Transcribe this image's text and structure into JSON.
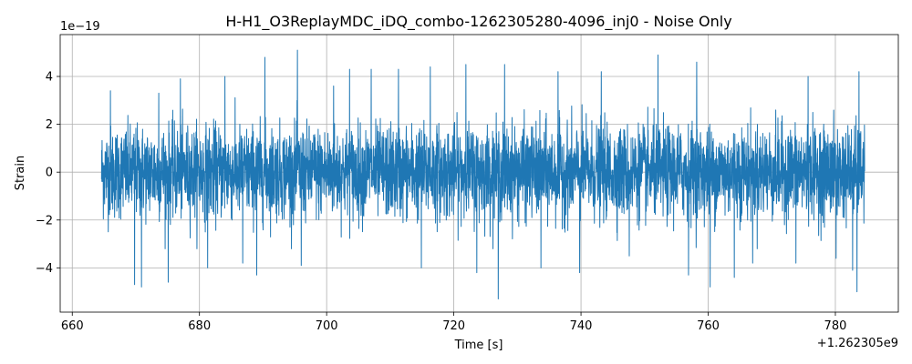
{
  "chart_data": {
    "type": "line",
    "title": "H-H1_O3ReplayMDC_iDQ_combo-1262305280-4096_inj0 - Noise Only",
    "xlabel": "Time [s]",
    "ylabel": "Strain",
    "x_offset_label": "+1.262305e9",
    "y_scale_label": "1e−19",
    "xlim": [
      658.1,
      789.9
    ],
    "ylim": [
      -5.85,
      5.75
    ],
    "x_ticks": [
      660,
      680,
      700,
      720,
      740,
      760,
      780
    ],
    "x_tick_labels": [
      "660",
      "680",
      "700",
      "720",
      "740",
      "760",
      "780"
    ],
    "y_ticks": [
      -4,
      -2,
      0,
      2,
      4
    ],
    "y_tick_labels": [
      "−4",
      "−2",
      "0",
      "2",
      "4"
    ],
    "grid": true,
    "color": "#1f77b4",
    "series": [
      {
        "x_start": 664.6,
        "x_end": 784.6,
        "amplitude_scale": 1.0,
        "peaks": [
          {
            "x": 666.0,
            "y": 3.4
          },
          {
            "x": 669.8,
            "y": -4.7
          },
          {
            "x": 670.9,
            "y": -4.8
          },
          {
            "x": 673.6,
            "y": 3.3
          },
          {
            "x": 675.1,
            "y": -4.6
          },
          {
            "x": 677.0,
            "y": 3.9
          },
          {
            "x": 681.3,
            "y": -4.0
          },
          {
            "x": 684.0,
            "y": 4.0
          },
          {
            "x": 686.8,
            "y": -3.8
          },
          {
            "x": 689.0,
            "y": -4.3
          },
          {
            "x": 690.3,
            "y": 4.8
          },
          {
            "x": 695.4,
            "y": 5.1
          },
          {
            "x": 696.0,
            "y": -3.9
          },
          {
            "x": 701.1,
            "y": 3.6
          },
          {
            "x": 703.6,
            "y": 4.3
          },
          {
            "x": 707.0,
            "y": 4.3
          },
          {
            "x": 711.3,
            "y": 4.3
          },
          {
            "x": 714.9,
            "y": -4.0
          },
          {
            "x": 716.3,
            "y": 4.4
          },
          {
            "x": 721.9,
            "y": 4.5
          },
          {
            "x": 723.6,
            "y": -4.2
          },
          {
            "x": 727.0,
            "y": -5.3
          },
          {
            "x": 728.0,
            "y": 4.5
          },
          {
            "x": 733.7,
            "y": -4.0
          },
          {
            "x": 736.4,
            "y": 4.2
          },
          {
            "x": 739.8,
            "y": -4.2
          },
          {
            "x": 743.2,
            "y": 4.2
          },
          {
            "x": 747.6,
            "y": -3.5
          },
          {
            "x": 752.1,
            "y": 4.9
          },
          {
            "x": 756.9,
            "y": -4.3
          },
          {
            "x": 758.2,
            "y": 4.6
          },
          {
            "x": 760.3,
            "y": -4.8
          },
          {
            "x": 764.1,
            "y": -4.4
          },
          {
            "x": 767.0,
            "y": -3.8
          },
          {
            "x": 773.8,
            "y": -3.8
          },
          {
            "x": 775.7,
            "y": 4.0
          },
          {
            "x": 780.1,
            "y": -3.6
          },
          {
            "x": 782.7,
            "y": -4.1
          },
          {
            "x": 783.4,
            "y": -5.0
          },
          {
            "x": 783.7,
            "y": 4.2
          }
        ]
      }
    ]
  }
}
